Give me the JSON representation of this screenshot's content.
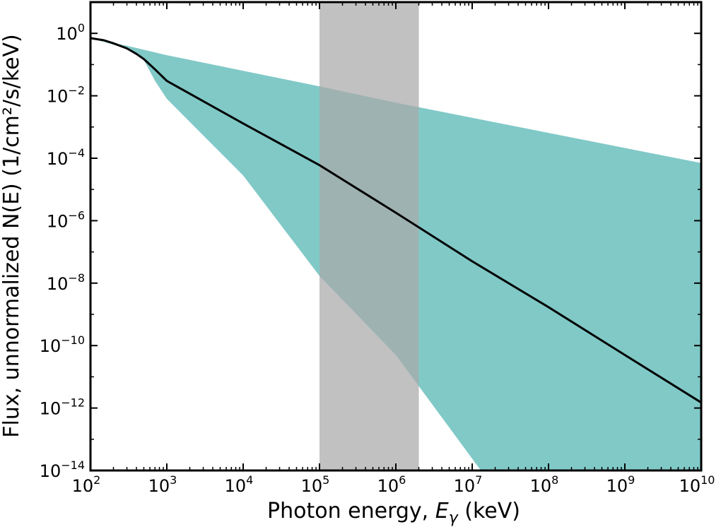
{
  "chart_data": {
    "type": "line",
    "x_scale": "log",
    "y_scale": "log",
    "xlim": [
      100,
      10000000000
    ],
    "ylim": [
      1e-14,
      10
    ],
    "xlabel": "Photon energy, ",
    "xlabel_symbol": "E",
    "xlabel_subscript": "γ",
    "xlabel_unit": " (keV)",
    "ylabel": "Flux, unnormalized N(E) (1/cm²/s/keV)",
    "x_ticks": [
      {
        "base": "10",
        "exp": "2",
        "value": 100
      },
      {
        "base": "10",
        "exp": "3",
        "value": 1000
      },
      {
        "base": "10",
        "exp": "4",
        "value": 10000
      },
      {
        "base": "10",
        "exp": "5",
        "value": 100000
      },
      {
        "base": "10",
        "exp": "6",
        "value": 1000000
      },
      {
        "base": "10",
        "exp": "7",
        "value": 10000000
      },
      {
        "base": "10",
        "exp": "8",
        "value": 100000000
      },
      {
        "base": "10",
        "exp": "9",
        "value": 1000000000
      },
      {
        "base": "10",
        "exp": "10",
        "value": 10000000000
      }
    ],
    "y_ticks": [
      {
        "base": "10",
        "exp": "0",
        "value": 1
      },
      {
        "base": "10",
        "exp": "−2",
        "value": 0.01
      },
      {
        "base": "10",
        "exp": "−4",
        "value": 0.0001
      },
      {
        "base": "10",
        "exp": "−6",
        "value": 1e-06
      },
      {
        "base": "10",
        "exp": "−8",
        "value": 1e-08
      },
      {
        "base": "10",
        "exp": "−10",
        "value": 1e-10
      },
      {
        "base": "10",
        "exp": "−12",
        "value": 1e-12
      },
      {
        "base": "10",
        "exp": "−14",
        "value": 1e-14
      }
    ],
    "series": [
      {
        "kind": "line",
        "color": "#000000",
        "points": [
          [
            100,
            0.7
          ],
          [
            150,
            0.6
          ],
          [
            200,
            0.48
          ],
          [
            300,
            0.33
          ],
          [
            400,
            0.22
          ],
          [
            500,
            0.15
          ],
          [
            700,
            0.07
          ],
          [
            1000,
            0.03
          ],
          [
            10000,
            0.0013
          ],
          [
            100000,
            6e-05
          ],
          [
            1000000,
            1.8e-06
          ],
          [
            10000000,
            5e-08
          ],
          [
            100000000,
            1.7e-09
          ],
          [
            1000000000,
            5e-11
          ],
          [
            10000000000,
            1.5e-12
          ]
        ]
      },
      {
        "kind": "band",
        "color": "#80c9c7",
        "upper": [
          [
            100,
            0.7
          ],
          [
            300,
            0.4
          ],
          [
            1000,
            0.2
          ],
          [
            100000,
            0.02
          ],
          [
            1000000,
            0.006
          ],
          [
            10000000000,
            7e-05
          ]
        ],
        "lower": [
          [
            100,
            0.7
          ],
          [
            300,
            0.33
          ],
          [
            500,
            0.14
          ],
          [
            700,
            0.03
          ],
          [
            1000,
            0.008
          ],
          [
            10000,
            2.8e-05
          ],
          [
            100000,
            1.7e-08
          ],
          [
            1000000,
            5e-11
          ],
          [
            13000000,
            1e-14
          ]
        ]
      }
    ],
    "shaded_region": {
      "x_range": [
        100000,
        2000000
      ],
      "color": "#a9a9a9"
    },
    "grid": false,
    "legend": "none"
  }
}
